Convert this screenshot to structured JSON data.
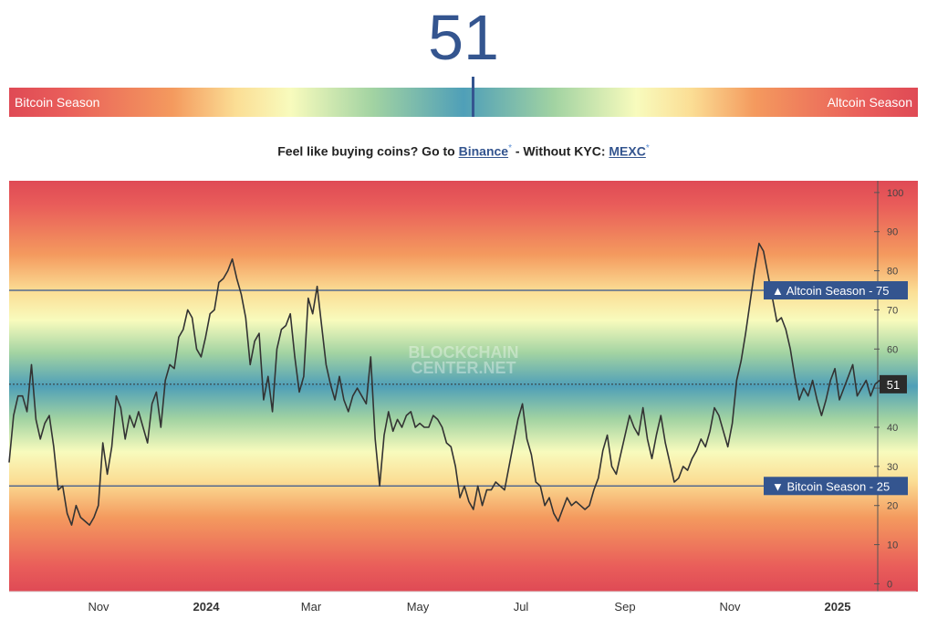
{
  "index": {
    "value": "51"
  },
  "season_bar": {
    "left_label": "Bitcoin Season",
    "right_label": "Altcoin Season",
    "needle_value": 51
  },
  "promo": {
    "prefix": "Feel like buying coins? Go to",
    "link1": "Binance",
    "link1_mark": "*",
    "middle": "- Without KYC:",
    "link2": "MEXC",
    "link2_mark": "*"
  },
  "watermark": {
    "line1": "BLOCKCHAIN",
    "line2": "CENTER.NET"
  },
  "colors": {
    "accent": "#34558f",
    "line": "#333333",
    "red": "#df4a55",
    "yellow": "#f8fbbd",
    "blue": "#4f9fb8"
  },
  "chart_data": {
    "type": "line",
    "x_tick_labels": [
      "Nov",
      "2024",
      "Mar",
      "May",
      "Jul",
      "Sep",
      "Nov",
      "2025"
    ],
    "y_ticks": [
      0,
      10,
      20,
      30,
      40,
      50,
      60,
      70,
      80,
      90,
      100
    ],
    "ylim": [
      -2,
      103
    ],
    "grid": false,
    "thresholds": [
      {
        "label": "▲ Altcoin Season - 75",
        "value": 75
      },
      {
        "label": "▼ Bitcoin Season - 25",
        "value": 25
      }
    ],
    "current": {
      "label": "51",
      "value": 51
    },
    "series": [
      {
        "values": [
          31,
          43,
          48,
          48,
          44,
          56,
          42,
          37,
          41,
          43,
          35,
          24,
          25,
          18,
          15,
          20,
          17,
          16,
          15,
          17,
          20,
          36,
          28,
          35,
          48,
          45,
          37,
          43,
          40,
          44,
          40,
          36,
          46,
          49,
          40,
          52,
          56,
          55,
          63,
          65,
          70,
          68,
          60,
          58,
          63,
          69,
          70,
          77,
          78,
          80,
          83,
          78,
          74,
          68,
          56,
          62,
          64,
          47,
          53,
          44,
          60,
          65,
          66,
          69,
          58,
          49,
          53,
          73,
          69,
          76,
          66,
          56,
          51,
          47,
          53,
          47,
          44,
          48,
          50,
          48,
          46,
          58,
          37,
          25,
          38,
          44,
          39,
          42,
          40,
          43,
          44,
          40,
          41,
          40,
          40,
          43,
          42,
          40,
          36,
          35,
          30,
          22,
          25,
          21,
          19,
          25,
          20,
          24,
          24,
          26,
          25,
          24,
          30,
          36,
          42,
          46,
          37,
          33,
          26,
          25,
          20,
          22,
          18,
          16,
          19,
          22,
          20,
          21,
          20,
          19,
          20,
          24,
          27,
          34,
          38,
          30,
          28,
          33,
          38,
          43,
          40,
          38,
          45,
          37,
          32,
          38,
          43,
          36,
          31,
          26,
          27,
          30,
          29,
          32,
          34,
          37,
          35,
          39,
          45,
          43,
          39,
          35,
          41,
          52,
          57,
          64,
          72,
          80,
          87,
          85,
          79,
          73,
          67,
          68,
          65,
          60,
          53,
          47,
          50,
          48,
          52,
          47,
          43,
          47,
          52,
          55,
          47,
          50,
          53,
          56,
          48,
          50,
          52,
          48,
          51,
          52
        ]
      }
    ]
  }
}
